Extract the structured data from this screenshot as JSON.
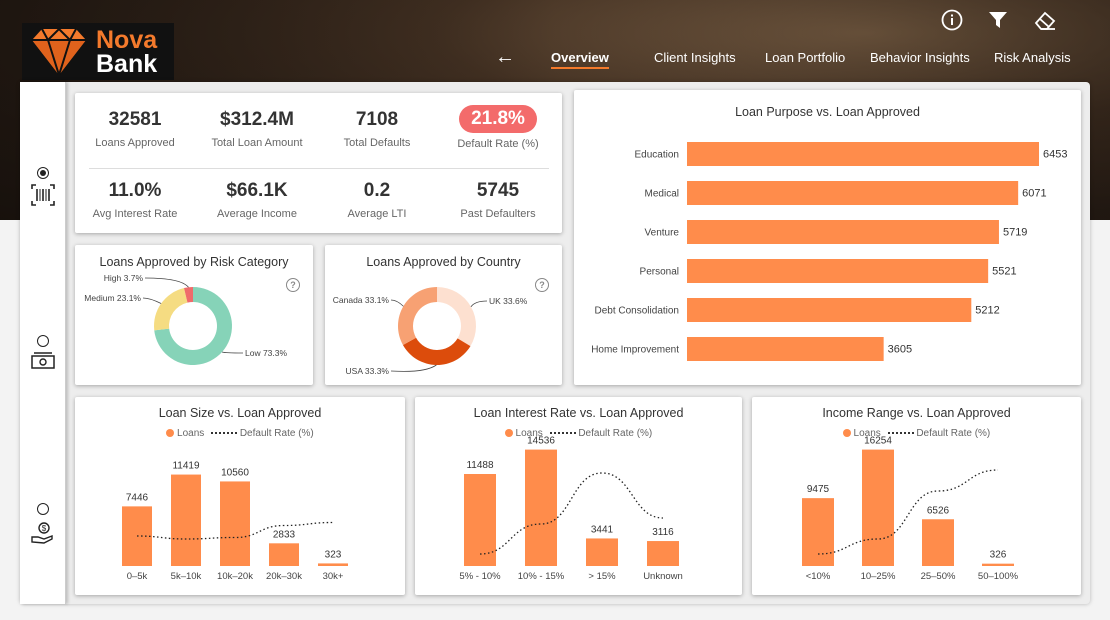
{
  "brand": {
    "name_top": "Nova",
    "name_bottom": "Bank"
  },
  "top_icons": [
    "info-icon",
    "filter-icon",
    "eraser-icon"
  ],
  "nav": {
    "back": "←",
    "tabs": [
      {
        "label": "Overview",
        "active": true
      },
      {
        "label": "Client Insights",
        "active": false
      },
      {
        "label": "Loan Portfolio",
        "active": false
      },
      {
        "label": "Behavior Insights",
        "active": false
      },
      {
        "label": "Risk Analysis",
        "active": false
      }
    ]
  },
  "sidebar": [
    {
      "icon": "barcode-scan-icon",
      "selected": true
    },
    {
      "icon": "cash-icon",
      "selected": false
    },
    {
      "icon": "money-hand-icon",
      "selected": false
    }
  ],
  "kpis": {
    "row1": [
      {
        "value": "32581",
        "label": "Loans Approved"
      },
      {
        "value": "$312.4M",
        "label": "Total Loan Amount"
      },
      {
        "value": "7108",
        "label": "Total Defaults"
      },
      {
        "value": "21.8%",
        "label": "Default Rate (%)",
        "highlight": "#f36b6b"
      }
    ],
    "row2": [
      {
        "value": "11.0%",
        "label": "Avg Interest Rate"
      },
      {
        "value": "$66.1K",
        "label": "Average Income"
      },
      {
        "value": "0.2",
        "label": "Average LTI"
      },
      {
        "value": "5745",
        "label": "Past Defaulters"
      }
    ]
  },
  "colors": {
    "accent": "#ff8c4b",
    "default_pill": "#f36b6b"
  },
  "chart_data": [
    {
      "id": "risk",
      "type": "pie",
      "title": "Loans Approved by Risk Category",
      "slices": [
        {
          "label": "Low",
          "value": 73.3,
          "text": "Low 73.3%",
          "color": "#86d3b8"
        },
        {
          "label": "Medium",
          "value": 23.1,
          "text": "Medium 23.1%",
          "color": "#f5dc82"
        },
        {
          "label": "High",
          "value": 3.7,
          "text": "High 3.7%",
          "color": "#ef6b6b"
        }
      ]
    },
    {
      "id": "country",
      "type": "pie",
      "title": "Loans Approved by Country",
      "slices": [
        {
          "label": "UK",
          "value": 33.6,
          "text": "UK 33.6%",
          "color": "#fde0d0"
        },
        {
          "label": "USA",
          "value": 33.3,
          "text": "USA 33.3%",
          "color": "#dc4c0c"
        },
        {
          "label": "Canada",
          "value": 33.1,
          "text": "Canada 33.1%",
          "color": "#f7a173"
        }
      ]
    },
    {
      "id": "purpose",
      "type": "bar",
      "orientation": "horizontal",
      "title": "Loan Purpose vs. Loan Approved",
      "categories": [
        "Education",
        "Medical",
        "Venture",
        "Personal",
        "Debt Consolidation",
        "Home Improvement"
      ],
      "values": [
        6453,
        6071,
        5719,
        5521,
        5212,
        3605
      ],
      "xlim": [
        0,
        6453
      ]
    },
    {
      "id": "size",
      "type": "bar",
      "title": "Loan Size vs. Loan Approved",
      "legend": [
        "Loans",
        "Default Rate (%)"
      ],
      "categories": [
        "0–5k",
        "5k–10k",
        "10k–20k",
        "20k–30k",
        "30k+"
      ],
      "values": [
        7446,
        11419,
        10560,
        2833,
        323
      ],
      "line_values": [
        20,
        18,
        19,
        27,
        29
      ],
      "ylim": [
        0,
        14536
      ],
      "line_ylim": [
        0,
        100
      ]
    },
    {
      "id": "interest",
      "type": "bar",
      "title": "Loan Interest Rate vs. Loan Approved",
      "legend": [
        "Loans",
        "Default Rate (%)"
      ],
      "categories": [
        "5% - 10%",
        "10% - 15%",
        "> 15%",
        "Unknown"
      ],
      "values": [
        11488,
        14536,
        3441,
        3116
      ],
      "line_values": [
        8,
        28,
        62,
        32
      ],
      "ylim": [
        0,
        14536
      ],
      "line_ylim": [
        0,
        100
      ]
    },
    {
      "id": "income",
      "type": "bar",
      "title": "Income Range vs. Loan Approved",
      "legend": [
        "Loans",
        "Default Rate (%)"
      ],
      "categories": [
        "<10%",
        "10–25%",
        "25–50%",
        "50–100%"
      ],
      "values": [
        9475,
        16254,
        6526,
        326
      ],
      "line_values": [
        8,
        18,
        50,
        64
      ],
      "ylim": [
        0,
        16254
      ],
      "line_ylim": [
        0,
        100
      ]
    }
  ]
}
